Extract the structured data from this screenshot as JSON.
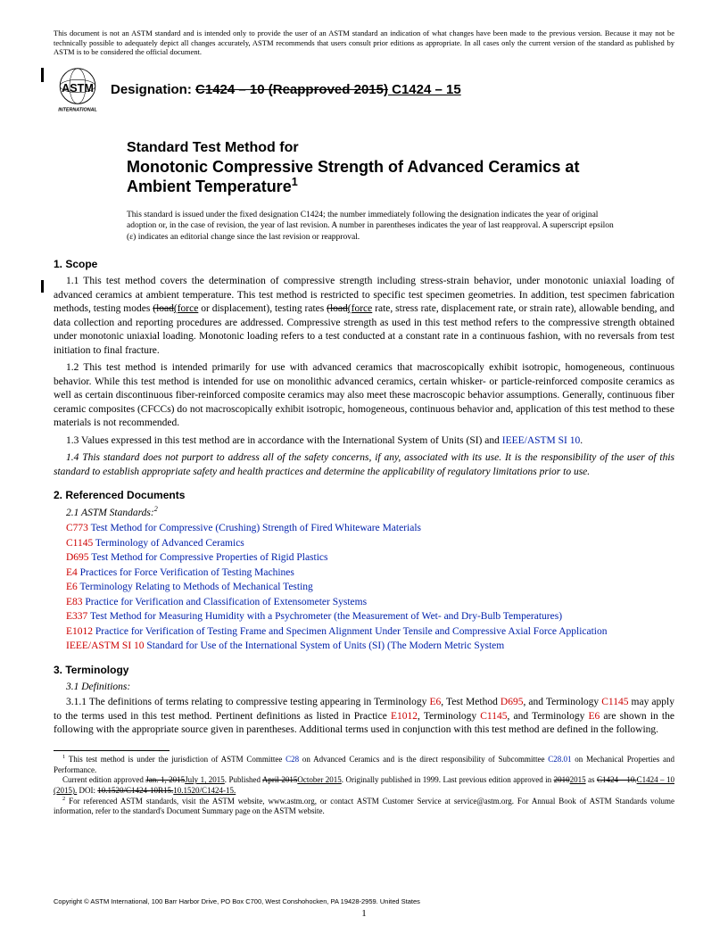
{
  "disclaimer": "This document is not an ASTM standard and is intended only to provide the user of an ASTM standard an indication of what changes have been made to the previous version. Because it may not be technically possible to adequately depict all changes accurately, ASTM recommends that users consult prior editions as appropriate. In all cases only the current version of the standard as published by ASTM is to be considered the official document.",
  "logo_text": "INTERNATIONAL",
  "designation_label": "Designation: ",
  "designation_old": "C1424 – 10 (Reapproved 2015)",
  "designation_new": " C1424 – 15",
  "title_lead": "Standard Test Method for",
  "title_main": "Monotonic Compressive Strength of Advanced Ceramics at Ambient Temperature",
  "title_sup": "1",
  "issuance": "This standard is issued under the fixed designation C1424; the number immediately following the designation indicates the year of original adoption or, in the case of revision, the year of last revision. A number in parentheses indicates the year of last reapproval. A superscript epsilon (ε) indicates an editorial change since the last revision or reapproval.",
  "s1_head": "1. Scope",
  "s1_1a": "1.1 This test method covers the determination of compressive strength including stress-strain behavior, under monotonic uniaxial loading of advanced ceramics at ambient temperature. This test method is restricted to specific test specimen geometries. In addition, test specimen fabrication methods, testing modes ",
  "s1_1_strike1": "(load",
  "s1_1_under1": "(force",
  "s1_1b": " or displacement), testing rates ",
  "s1_1_strike2": "(load",
  "s1_1_under2": "(force",
  "s1_1c": " rate, stress rate, displacement rate, or strain rate), allowable bending, and data collection and reporting procedures are addressed. Compressive strength as used in this test method refers to the compressive strength obtained under monotonic uniaxial loading. Monotonic loading refers to a test conducted at a constant rate in a continuous fashion, with no reversals from test initiation to final fracture.",
  "s1_2": "1.2 This test method is intended primarily for use with advanced ceramics that macroscopically exhibit isotropic, homogeneous, continuous behavior. While this test method is intended for use on monolithic advanced ceramics, certain whisker- or particle-reinforced composite ceramics as well as certain discontinuous fiber-reinforced composite ceramics may also meet these macroscopic behavior assumptions. Generally, continuous fiber ceramic composites (CFCCs) do not macroscopically exhibit isotropic, homogeneous, continuous behavior and, application of this test method to these materials is not recommended.",
  "s1_3a": "1.3  Values expressed in this test method are in accordance with the International System of Units (SI) and ",
  "s1_3_link": "IEEE/ASTM SI 10",
  "s1_3b": ".",
  "s1_4": "1.4 This standard does not purport to address all of the safety concerns, if any, associated with its use. It is the responsibility of the user of this standard to establish appropriate safety and health practices and determine the applicability of regulatory limitations prior to use.",
  "s2_head": "2. Referenced Documents",
  "s2_sub": "2.1 ASTM Standards:",
  "s2_sup": "2",
  "refs": [
    {
      "code": "C773",
      "title": " Test Method for Compressive (Crushing) Strength of Fired Whiteware Materials"
    },
    {
      "code": "C1145",
      "title": " Terminology of Advanced Ceramics"
    },
    {
      "code": "D695",
      "title": " Test Method for Compressive Properties of Rigid Plastics"
    },
    {
      "code": "E4",
      "title": " Practices for Force Verification of Testing Machines"
    },
    {
      "code": "E6",
      "title": " Terminology Relating to Methods of Mechanical Testing"
    },
    {
      "code": "E83",
      "title": " Practice for Verification and Classification of Extensometer Systems"
    },
    {
      "code": "E337",
      "title": " Test Method for Measuring Humidity with a Psychrometer (the Measurement of Wet- and Dry-Bulb Temperatures)"
    },
    {
      "code": "E1012",
      "title": " Practice for Verification of Testing Frame and Specimen Alignment Under Tensile and Compressive Axial Force Application"
    },
    {
      "code": "IEEE/ASTM SI 10",
      "title": " Standard for Use of the International System of Units (SI) (The Modern Metric System"
    }
  ],
  "s3_head": "3. Terminology",
  "s3_sub": "3.1 Definitions:",
  "s3_1a": "3.1.1 The definitions of terms relating to compressive testing appearing in Terminology ",
  "s3_l1": "E6",
  "s3_1b": ", Test Method ",
  "s3_l2": "D695",
  "s3_1c": ", and Terminology ",
  "s3_l3": "C1145",
  "s3_1d": " may apply to the terms used in this test method. Pertinent definitions as listed in Practice ",
  "s3_l4": "E1012",
  "s3_1e": ", Terminology ",
  "s3_l5": "C1145",
  "s3_1f": ", and Terminology ",
  "s3_l6": "E6",
  "s3_1g": " are shown in the following with the appropriate source given in parentheses. Additional terms used in conjunction with this test method are defined in the following.",
  "fn1a": " This test method is under the jurisdiction of ASTM Committee ",
  "fn1_l1": "C28",
  "fn1b": " on Advanced Ceramics and is the direct responsibility of Subcommittee ",
  "fn1_l2": "C28.01",
  "fn1c": " on Mechanical Properties and Performance.",
  "fn1d": "Current edition approved ",
  "fn1_s1": "Jan. 1, 2015",
  "fn1_u1": "July 1, 2015",
  "fn1e": ". Published ",
  "fn1_s2": "April 2015",
  "fn1_u2": "October 2015",
  "fn1f": ". Originally published in 1999. Last previous edition approved in ",
  "fn1_s3": "2010",
  "fn1_u3": "2015",
  "fn1g": " as ",
  "fn1_s4": "C1424 – 10.",
  "fn1_u4": "C1424 – 10 (2015).",
  "fn1h": " DOI: ",
  "fn1_s5": "10.1520/C1424-10R15.",
  "fn1_u5": "10.1520/C1424-15.",
  "fn2": " For referenced ASTM standards, visit the ASTM website, www.astm.org, or contact ASTM Customer Service at service@astm.org. For Annual Book of ASTM Standards volume information, refer to the standard's Document Summary page on the ASTM website.",
  "copyright": "Copyright © ASTM International, 100 Barr Harbor Drive, PO Box C700, West Conshohocken, PA 19428-2959. United States",
  "page": "1"
}
